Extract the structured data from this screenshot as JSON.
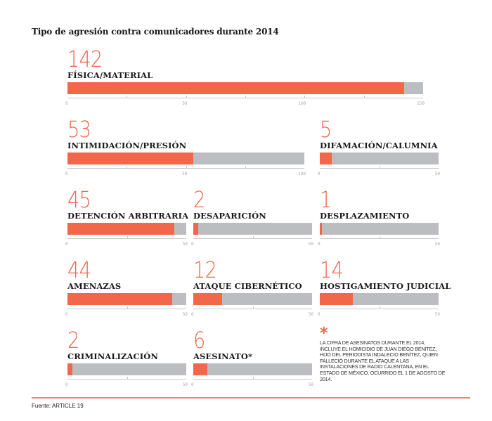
{
  "chart_data": {
    "type": "bar",
    "title": "Tipo de agresión contra comunicadores durante 2014",
    "colors": {
      "value": "#f26649",
      "fill": "#f26649",
      "track": "#bcbdc0"
    },
    "panels": [
      {
        "label": "FÍSICA/MATERIAL",
        "value": 142,
        "max": 150,
        "ticks": [
          0,
          50,
          100,
          150
        ],
        "tick_labels": [
          "0",
          "50",
          "100",
          "150"
        ]
      },
      {
        "label": "INTIMIDACIÓN/PRESIÓN",
        "value": 53,
        "max": 100,
        "ticks": [
          0,
          50,
          100
        ],
        "tick_labels": [
          "0",
          "50",
          "100"
        ]
      },
      {
        "label": "DIFAMACIÓN/CALUMNIA",
        "value": 5,
        "max": 50,
        "ticks": [
          0,
          50
        ],
        "tick_labels": [
          "0",
          "50"
        ]
      },
      {
        "label": "DETENCIÓN ARBITRARIA",
        "value": 45,
        "max": 50,
        "ticks": [
          0,
          50
        ],
        "tick_labels": [
          "0",
          "50"
        ]
      },
      {
        "label": "DESAPARICIÓN",
        "value": 2,
        "max": 50,
        "ticks": [
          0,
          50
        ],
        "tick_labels": [
          "0",
          "50"
        ]
      },
      {
        "label": "DESPLAZAMIENTO",
        "value": 1,
        "max": 50,
        "ticks": [
          0,
          50
        ],
        "tick_labels": [
          "0",
          "50"
        ]
      },
      {
        "label": "AMENAZAS",
        "value": 44,
        "max": 50,
        "ticks": [
          0,
          50
        ],
        "tick_labels": [
          "0",
          "50"
        ]
      },
      {
        "label": "ATAQUE CIBERNÉTICO",
        "value": 12,
        "max": 50,
        "ticks": [
          0,
          50
        ],
        "tick_labels": [
          "0",
          "50"
        ]
      },
      {
        "label": "HOSTIGAMIENTO JUDICIAL",
        "value": 14,
        "max": 50,
        "ticks": [
          0,
          50
        ],
        "tick_labels": [
          "0",
          "50"
        ]
      },
      {
        "label": "CRIMINALIZACIÓN",
        "value": 2,
        "max": 50,
        "ticks": [
          0,
          50
        ],
        "tick_labels": [
          "0",
          "50"
        ]
      },
      {
        "label": "ASESINATO*",
        "value": 6,
        "max": 50,
        "ticks": [
          0,
          50
        ],
        "tick_labels": [
          "0",
          "50"
        ]
      }
    ],
    "note_symbol": "*",
    "note": "La cifra de asesinatos durante el 2014, incluye el homicidio de Juan Diego Benítez, hijo del periodista Indalecio Benítez, quien falleció durante el ataque a las instalaciones de Radio Calentana, en el Estado de México, ocurrido el 1 de agosto de 2014.",
    "source": "Fuente: ARTICLE 19"
  }
}
